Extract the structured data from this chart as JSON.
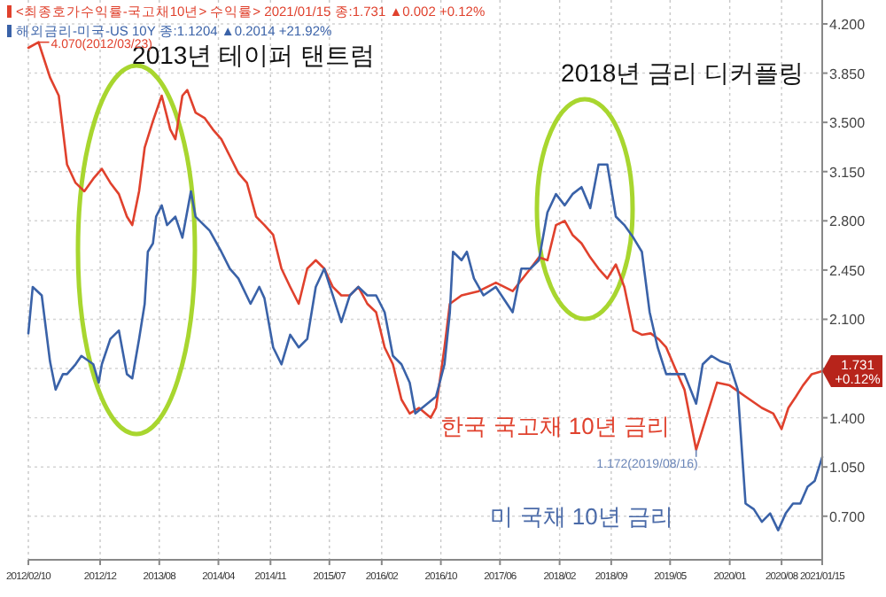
{
  "chart_data": {
    "type": "line",
    "series": [
      {
        "name": "<최종호가수익률-국고채10년> 수익률> 2021/01/15 종:1.731 ▲0.002 +0.12%",
        "color": "#e0412d",
        "x": [
          "2012-02-10",
          "2012-03-23",
          "2012-04-05",
          "2012-05-09",
          "2012-06-14",
          "2012-07-18",
          "2012-08-22",
          "2012-09-27",
          "2012-11-03",
          "2012-12-08",
          "2013-01-12",
          "2013-02-16",
          "2013-03-21",
          "2013-04-12",
          "2013-05-10",
          "2013-06-02",
          "2013-07-06",
          "2013-08-11",
          "2013-09-15",
          "2013-10-06",
          "2013-11-04",
          "2013-11-24",
          "2013-12-28",
          "2014-02-04",
          "2014-03-09",
          "2014-04-13",
          "2014-05-18",
          "2014-06-22",
          "2014-07-27",
          "2014-09-03",
          "2014-10-07",
          "2014-11-12",
          "2014-12-16",
          "2015-01-21",
          "2015-02-25",
          "2015-04-01",
          "2015-05-06",
          "2015-06-10",
          "2015-07-15",
          "2015-08-19",
          "2015-09-23",
          "2015-10-28",
          "2015-12-04",
          "2016-01-09",
          "2016-02-13",
          "2016-03-18",
          "2016-04-22",
          "2016-05-26",
          "2016-07-03",
          "2016-08-20",
          "2016-09-11",
          "2016-10-16",
          "2016-11-07",
          "2016-12-25",
          "2017-03-06",
          "2017-05-15",
          "2017-07-23",
          "2017-10-04",
          "2017-11-08",
          "2017-12-13",
          "2018-01-17",
          "2018-02-22",
          "2018-03-26",
          "2018-05-02",
          "2018-06-07",
          "2018-07-11",
          "2018-08-16",
          "2018-09-20",
          "2018-10-25",
          "2018-12-01",
          "2019-01-05",
          "2019-02-10",
          "2019-03-14",
          "2019-04-15",
          "2019-05-22",
          "2019-06-29",
          "2019-08-16",
          "2019-11-10",
          "2020-01-01",
          "2020-03-06",
          "2020-05-12",
          "2020-06-28",
          "2020-08-01",
          "2020-08-29",
          "2020-09-29",
          "2020-10-28",
          "2020-12-03",
          "2021-01-15"
        ],
        "values": [
          4.03,
          4.07,
          4.0,
          3.82,
          3.69,
          3.2,
          3.07,
          3.01,
          3.1,
          3.17,
          3.07,
          2.99,
          2.83,
          2.77,
          3.01,
          3.32,
          3.51,
          3.69,
          3.45,
          3.38,
          3.69,
          3.73,
          3.57,
          3.53,
          3.45,
          3.38,
          3.26,
          3.14,
          3.07,
          2.83,
          2.77,
          2.7,
          2.46,
          2.33,
          2.21,
          2.46,
          2.52,
          2.46,
          2.33,
          2.27,
          2.27,
          2.33,
          2.21,
          2.15,
          1.9,
          1.78,
          1.53,
          1.43,
          1.47,
          1.4,
          1.47,
          1.9,
          2.21,
          2.27,
          2.3,
          2.36,
          2.3,
          2.46,
          2.54,
          2.52,
          2.77,
          2.8,
          2.7,
          2.64,
          2.54,
          2.46,
          2.39,
          2.49,
          2.33,
          2.02,
          1.99,
          2.0,
          1.96,
          1.9,
          1.75,
          1.6,
          1.172,
          1.65,
          1.63,
          1.55,
          1.47,
          1.43,
          1.32,
          1.47,
          1.55,
          1.63,
          1.71,
          1.731
        ]
      },
      {
        "name": "해외금리-미국-US 10Y 종:1.1204 ▲0.2014 +21.92%",
        "color": "#3a62a8",
        "x": [
          "2012-02-10",
          "2012-02-28",
          "2012-04-05",
          "2012-05-09",
          "2012-06-01",
          "2012-07-01",
          "2012-07-18",
          "2012-08-22",
          "2012-09-15",
          "2012-11-03",
          "2012-11-25",
          "2012-12-08",
          "2013-01-12",
          "2013-02-16",
          "2013-03-21",
          "2013-04-12",
          "2013-05-10",
          "2013-06-02",
          "2013-06-15",
          "2013-07-06",
          "2013-07-19",
          "2013-08-11",
          "2013-09-02",
          "2013-10-06",
          "2013-11-04",
          "2013-12-09",
          "2013-12-28",
          "2014-01-20",
          "2014-02-24",
          "2014-04-13",
          "2014-05-18",
          "2014-06-22",
          "2014-08-11",
          "2014-09-16",
          "2014-10-07",
          "2014-11-12",
          "2014-12-16",
          "2015-01-21",
          "2015-02-25",
          "2015-04-01",
          "2015-05-06",
          "2015-06-10",
          "2015-07-15",
          "2015-08-19",
          "2015-09-23",
          "2015-10-28",
          "2015-12-04",
          "2016-01-09",
          "2016-02-13",
          "2016-03-18",
          "2016-04-22",
          "2016-05-26",
          "2016-06-18",
          "2016-09-11",
          "2016-10-16",
          "2016-11-07",
          "2016-11-20",
          "2016-12-25",
          "2017-01-16",
          "2017-02-14",
          "2017-03-25",
          "2017-05-15",
          "2017-07-23",
          "2017-08-28",
          "2017-10-04",
          "2017-11-08",
          "2017-12-13",
          "2018-01-17",
          "2018-02-22",
          "2018-03-26",
          "2018-05-02",
          "2018-06-07",
          "2018-07-11",
          "2018-08-16",
          "2018-09-20",
          "2018-10-25",
          "2018-12-01",
          "2019-01-05",
          "2019-02-06",
          "2019-03-11",
          "2019-04-15",
          "2019-05-22",
          "2019-06-29",
          "2019-08-16",
          "2019-09-12",
          "2019-10-18",
          "2019-11-25",
          "2020-01-01",
          "2020-02-03",
          "2020-03-06",
          "2020-04-09",
          "2020-05-12",
          "2020-06-15",
          "2020-07-18",
          "2020-08-18",
          "2020-09-17",
          "2020-10-17",
          "2020-11-16",
          "2020-12-15",
          "2021-01-15"
        ],
        "values": [
          2.0,
          2.33,
          2.27,
          1.8,
          1.6,
          1.71,
          1.71,
          1.78,
          1.84,
          1.78,
          1.65,
          1.78,
          1.96,
          2.02,
          1.71,
          1.68,
          1.96,
          2.21,
          2.58,
          2.64,
          2.83,
          2.91,
          2.77,
          2.83,
          2.68,
          3.01,
          2.83,
          2.79,
          2.73,
          2.58,
          2.46,
          2.39,
          2.21,
          2.33,
          2.25,
          1.9,
          1.78,
          1.99,
          1.9,
          1.96,
          2.33,
          2.46,
          2.27,
          2.08,
          2.27,
          2.33,
          2.27,
          2.27,
          2.15,
          1.84,
          1.78,
          1.65,
          1.43,
          1.55,
          1.78,
          2.15,
          2.58,
          2.52,
          2.58,
          2.39,
          2.27,
          2.33,
          2.15,
          2.46,
          2.46,
          2.52,
          2.86,
          2.99,
          2.91,
          2.99,
          3.04,
          2.89,
          3.2,
          3.2,
          2.83,
          2.77,
          2.68,
          2.58,
          2.15,
          1.9,
          1.71,
          1.71,
          1.71,
          1.5,
          1.78,
          1.84,
          1.8,
          1.78,
          1.6,
          0.79,
          0.75,
          0.66,
          0.72,
          0.6,
          0.72,
          0.79,
          0.79,
          0.91,
          0.95,
          1.1204
        ]
      }
    ],
    "xlim": [
      "2012-02-10",
      "2021-01-15"
    ],
    "xticks": [
      {
        "value": "2012-02-10",
        "label": "2012/02/10"
      },
      {
        "value": "2012-12-01",
        "label": "2012/12"
      },
      {
        "value": "2013-08-01",
        "label": "2013/08"
      },
      {
        "value": "2014-04-01",
        "label": "2014/04"
      },
      {
        "value": "2014-11-01",
        "label": "2014/11"
      },
      {
        "value": "2015-07-01",
        "label": "2015/07"
      },
      {
        "value": "2016-02-01",
        "label": "2016/02"
      },
      {
        "value": "2016-10-01",
        "label": "2016/10"
      },
      {
        "value": "2017-06-01",
        "label": "2017/06"
      },
      {
        "value": "2018-02-01",
        "label": "2018/02"
      },
      {
        "value": "2018-09-01",
        "label": "2018/09"
      },
      {
        "value": "2019-05-01",
        "label": "2019/05"
      },
      {
        "value": "2020-01-01",
        "label": "2020/01"
      },
      {
        "value": "2020-08-01",
        "label": "2020/08"
      },
      {
        "value": "2021-01-15",
        "label": "2021/01/15"
      }
    ],
    "ylim": [
      0.39,
      4.37
    ],
    "yticks": [
      {
        "value": 0.7,
        "label": "0.700"
      },
      {
        "value": 1.05,
        "label": "1.050"
      },
      {
        "value": 1.4,
        "label": "1.400"
      },
      {
        "value": 1.75,
        "label": null
      },
      {
        "value": 2.1,
        "label": "2.100"
      },
      {
        "value": 2.45,
        "label": "2.450"
      },
      {
        "value": 2.8,
        "label": "2.800"
      },
      {
        "value": 3.15,
        "label": "3.150"
      },
      {
        "value": 3.5,
        "label": "3.500"
      },
      {
        "value": 3.85,
        "label": "3.850"
      },
      {
        "value": 4.2,
        "label": "4.200"
      }
    ],
    "grid": true,
    "legend": "top left",
    "annotations": [
      "2013년 테이퍼 탠트럼",
      "2018년 금리 디커플링",
      "한국 국고채 10년 금리",
      "미 국채 10년 금리",
      {
        "text": "4.070(2012/03/23)",
        "x": "2012-03-23",
        "y": 4.07
      },
      {
        "text": "1.172(2019/08/16)",
        "x": "2019-08-16",
        "y": 1.172
      },
      {
        "text": "1.731 +0.12%",
        "x": "2021-01-15",
        "y": 1.731
      }
    ]
  }
}
